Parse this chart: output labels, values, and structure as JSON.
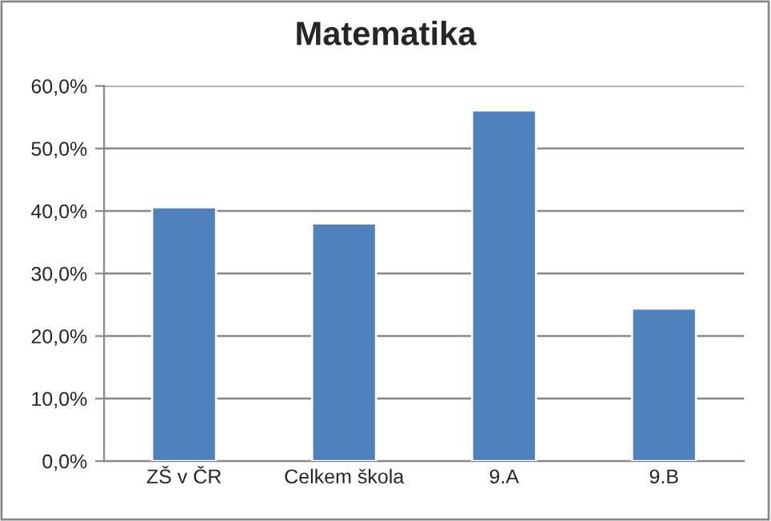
{
  "chart_data": {
    "type": "bar",
    "title": "Matematika",
    "categories": [
      "ZŠ v ČR",
      "Celkem škola",
      "9.A",
      "9.B"
    ],
    "values": [
      40.6,
      38.0,
      56.1,
      24.4
    ],
    "color": "#4f81bd",
    "ylim": [
      0,
      60
    ],
    "yticks": [
      {
        "value": 0,
        "label": "0,0%"
      },
      {
        "value": 10,
        "label": "10,0%"
      },
      {
        "value": 20,
        "label": "20,0%"
      },
      {
        "value": 30,
        "label": "30,0%"
      },
      {
        "value": 40,
        "label": "40,0%"
      },
      {
        "value": 50,
        "label": "50,0%"
      },
      {
        "value": 60,
        "label": "60,0%"
      }
    ],
    "grid": "y"
  }
}
